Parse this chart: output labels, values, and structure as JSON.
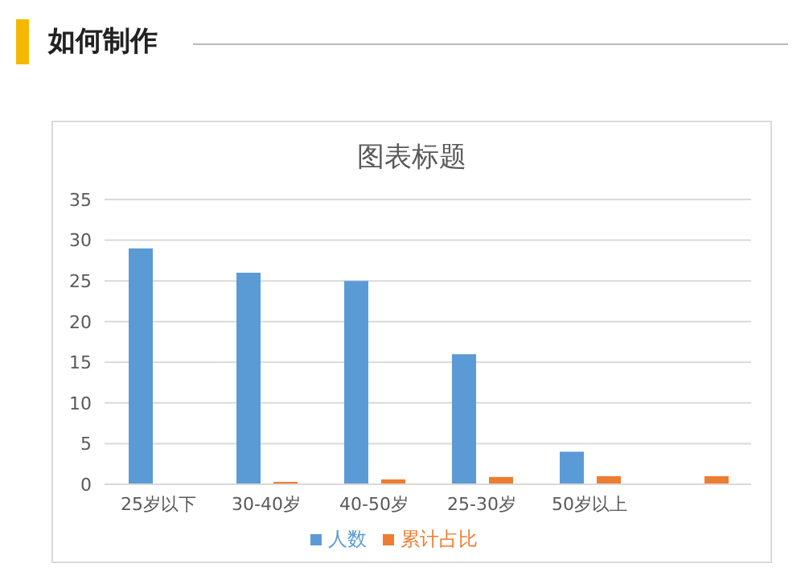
{
  "chart_data": {
    "type": "bar",
    "title": "图表标题",
    "annotations": [
      "如何制作"
    ],
    "categories": [
      "25岁以下",
      "30-40岁",
      "40-50岁",
      "25-30岁",
      "50岁以上",
      null
    ],
    "series": [
      {
        "name": "人数",
        "color": "#5b9bd5",
        "values": [
          29,
          26,
          25,
          16,
          4,
          null
        ]
      },
      {
        "name": "累计占比",
        "color": "#ed7d31",
        "values": [
          0,
          0.3,
          0.6,
          0.9,
          1,
          1
        ]
      }
    ],
    "ylim": [
      0,
      35
    ],
    "yticks": [
      0,
      5,
      10,
      15,
      20,
      25,
      30,
      35
    ],
    "grid": "y",
    "legend": "bottom"
  }
}
